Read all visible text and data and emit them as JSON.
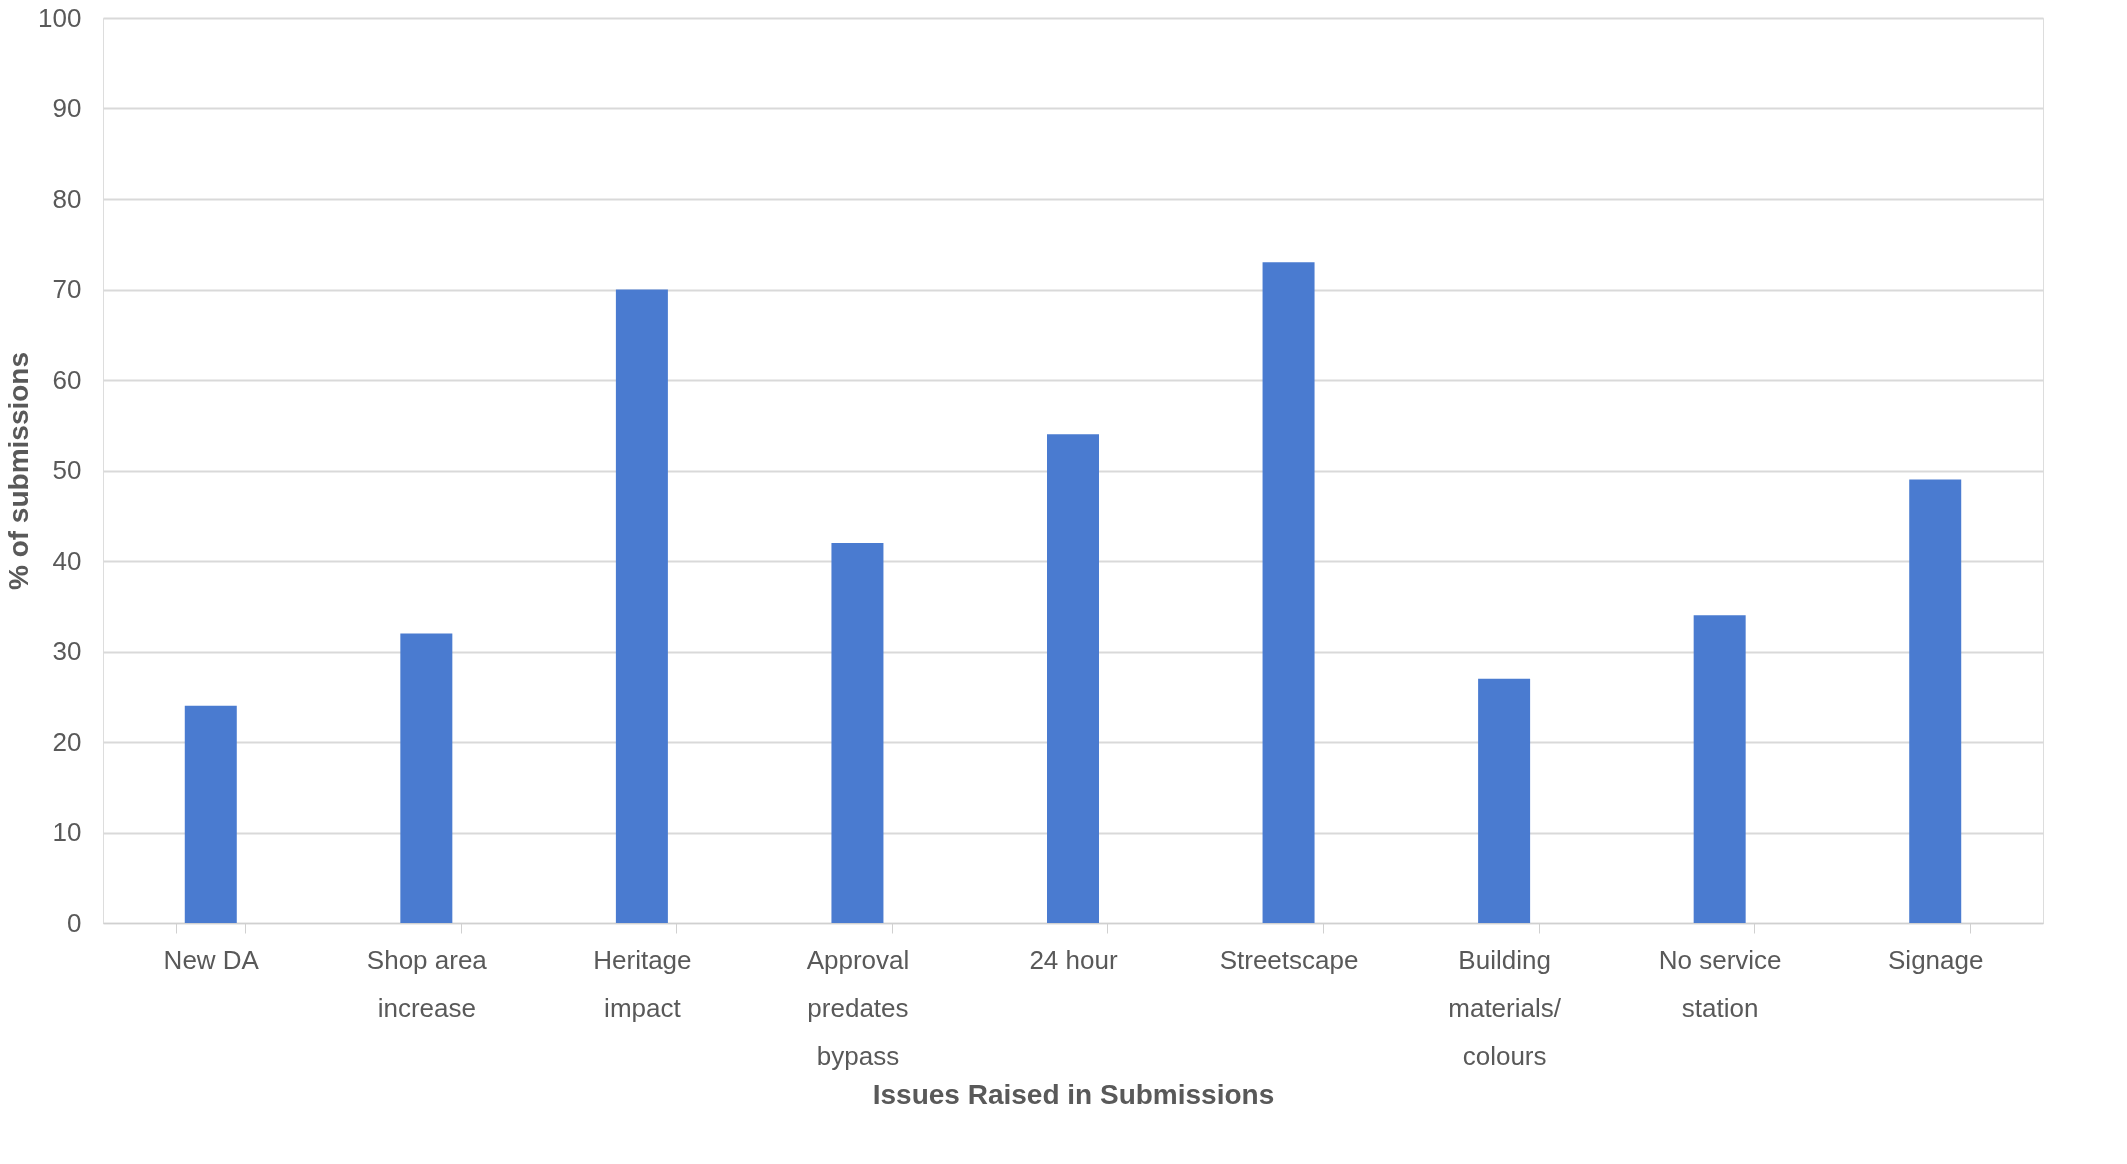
{
  "chart_data": {
    "type": "bar",
    "xlabel": "Issues Raised in Submissions",
    "ylabel": "% of submissions",
    "categories": [
      "New DA",
      "Shop area increase",
      "Heritage impact",
      "Approval predates bypass",
      "24 hour",
      "Streetscape",
      "Building materials/ colours",
      "No service station",
      "Signage"
    ],
    "values": [
      24,
      32,
      70,
      42,
      54,
      73,
      27,
      34,
      49
    ],
    "color": "#4a7bd0",
    "ylim": [
      0,
      100
    ],
    "yticks": [
      0,
      10,
      20,
      30,
      40,
      50,
      60,
      70,
      80,
      90,
      100
    ],
    "grid": "y"
  }
}
